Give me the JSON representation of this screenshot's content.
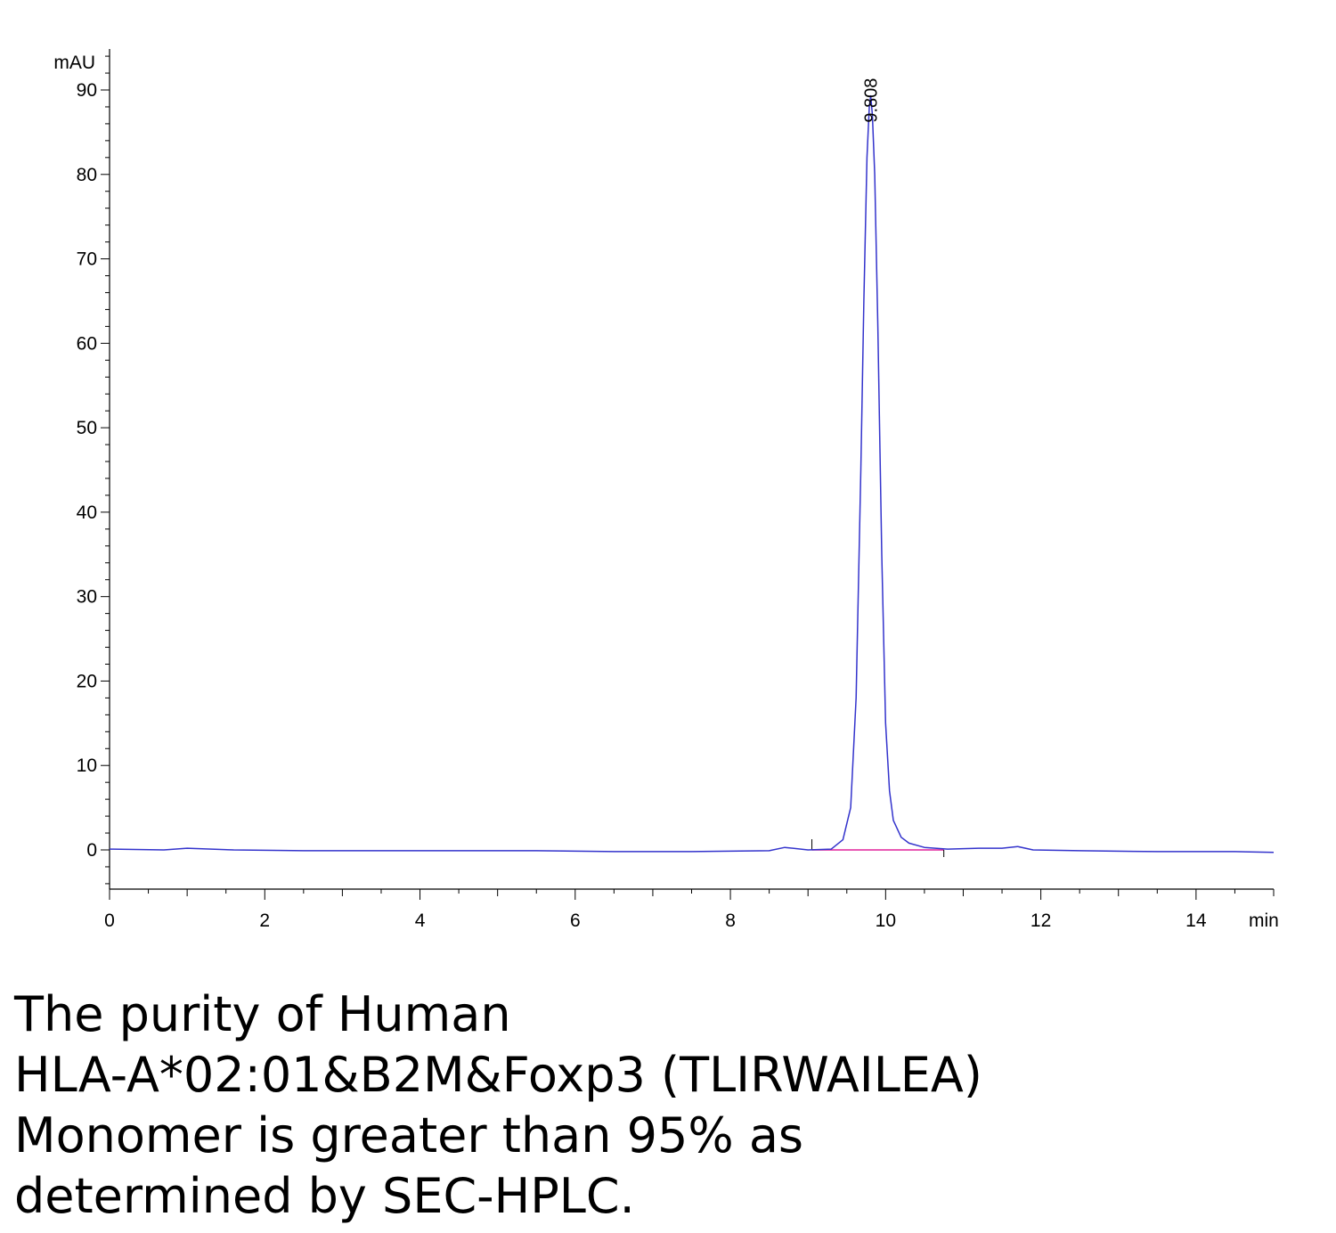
{
  "chart_data": {
    "type": "line",
    "title": "",
    "xlabel": "min",
    "ylabel": "mAU",
    "xlim": [
      0,
      15
    ],
    "ylim": [
      -5,
      95
    ],
    "x_ticks": [
      0,
      2,
      4,
      6,
      8,
      10,
      12,
      14
    ],
    "y_ticks": [
      0,
      10,
      20,
      30,
      40,
      50,
      60,
      70,
      80,
      90
    ],
    "grid": false,
    "legend": "none",
    "colors": {
      "trace": "#3333cc",
      "baseline": "#e0209a",
      "axis": "#000000"
    },
    "series": [
      {
        "x": [
          0,
          0.7,
          1.0,
          1.6,
          2.5,
          3.5,
          4.5,
          5.5,
          6.5,
          7.5,
          8.5,
          8.7,
          9.0,
          9.3,
          9.45,
          9.55,
          9.62,
          9.68,
          9.72,
          9.76,
          9.79,
          9.808,
          9.83,
          9.86,
          9.9,
          9.95,
          10.0,
          10.05,
          10.1,
          10.2,
          10.3,
          10.5,
          10.8,
          11.2,
          11.5,
          11.7,
          11.9,
          12.5,
          13.5,
          14.5,
          15.0
        ],
        "y": [
          0.1,
          0.0,
          0.2,
          0.0,
          -0.1,
          -0.1,
          -0.1,
          -0.1,
          -0.2,
          -0.2,
          -0.1,
          0.3,
          0.0,
          0.1,
          1.2,
          5.0,
          18.0,
          45.0,
          65.0,
          82.0,
          88.0,
          89.3,
          87.0,
          80.0,
          62.0,
          35.0,
          15.0,
          7.0,
          3.5,
          1.5,
          0.8,
          0.3,
          0.1,
          0.2,
          0.2,
          0.4,
          0.0,
          -0.1,
          -0.2,
          -0.2,
          -0.3
        ]
      }
    ],
    "baseline_segment": {
      "x": [
        9.05,
        10.75
      ],
      "y": [
        0,
        0
      ]
    },
    "annotations": [
      {
        "text": "9.808",
        "x": 9.808,
        "y": 89.3
      }
    ]
  },
  "caption": {
    "lines": [
      "The purity of Human",
      "HLA-A*02:01&B2M&Foxp3 (TLIRWAILEA)",
      "Monomer is greater than 95% as",
      "determined by SEC-HPLC."
    ]
  }
}
